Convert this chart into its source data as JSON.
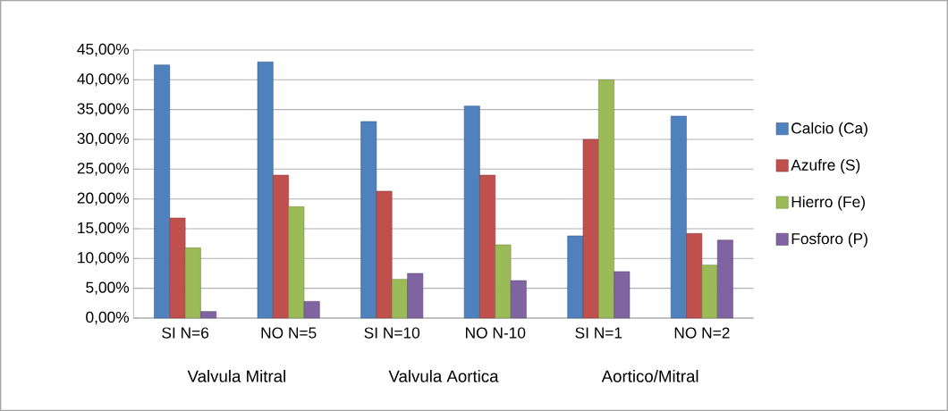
{
  "chart_data": {
    "type": "bar",
    "categories": [
      "SI N=6",
      "NO N=5",
      "SI N=10",
      "NO N-10",
      "SI N=1",
      "NO N=2"
    ],
    "series": [
      {
        "name": "Calcio (Ca)",
        "color": "#4f81bd",
        "values": [
          42.5,
          43,
          33,
          35.6,
          13.8,
          33.9
        ]
      },
      {
        "name": "Azufre (S)",
        "color": "#c0504d",
        "values": [
          16.8,
          24,
          21.3,
          24,
          30,
          14.2
        ]
      },
      {
        "name": "Hierro (Fe)",
        "color": "#9bbb59",
        "values": [
          11.8,
          18.7,
          6.5,
          12.3,
          40,
          8.9
        ]
      },
      {
        "name": "Fosforo (P)",
        "color": "#8064a2",
        "values": [
          1.1,
          2.8,
          7.5,
          6.3,
          7.8,
          13.1
        ]
      }
    ],
    "ylim": [
      0,
      45
    ],
    "yticks": [
      {
        "value": 0,
        "label": "0,00%"
      },
      {
        "value": 5,
        "label": "5,00%"
      },
      {
        "value": 10,
        "label": "10,00%"
      },
      {
        "value": 15,
        "label": "15,00%"
      },
      {
        "value": 20,
        "label": "20,00%"
      },
      {
        "value": 25,
        "label": "25,00%"
      },
      {
        "value": 30,
        "label": "30,00%"
      },
      {
        "value": 35,
        "label": "35,00%"
      },
      {
        "value": 40,
        "label": "40,00%"
      },
      {
        "value": 45,
        "label": "45,00%"
      }
    ],
    "annotations": [
      "Valvula Mitral",
      "Valvula  Aortica",
      "Aortico/Mitral"
    ],
    "grid": "y",
    "legend": "right"
  }
}
